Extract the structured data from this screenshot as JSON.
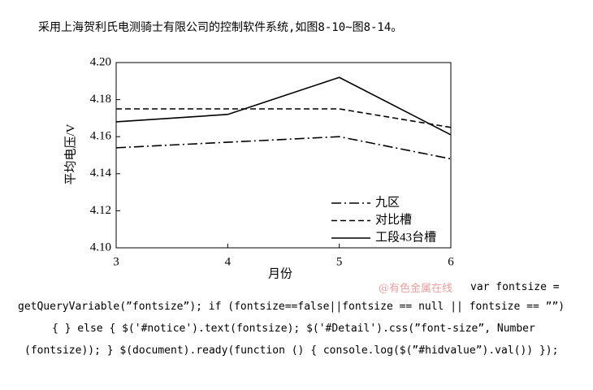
{
  "caption": "采用上海贺利氏电测骑士有限公司的控制软件系统,如图8-10~图8-14。",
  "chart_data": {
    "type": "line",
    "xlabel": "月份",
    "ylabel": "平均电压/V",
    "x": [
      3,
      4,
      5,
      6
    ],
    "xlim": [
      3,
      6
    ],
    "xticks": [
      3,
      4,
      5,
      6
    ],
    "ylim": [
      4.1,
      4.2
    ],
    "yticks": [
      {
        "value": 4.1,
        "label": "4.10"
      },
      4.12,
      4.14,
      4.16,
      4.18,
      {
        "value": 4.2,
        "label": "4.20"
      }
    ],
    "grid": false,
    "legend": "lower right",
    "series": [
      {
        "name": "九区",
        "color": "#000000",
        "dash": "dashdot",
        "values": [
          4.154,
          4.157,
          4.16,
          4.148
        ]
      },
      {
        "name": "对比槽",
        "color": "#000000",
        "dash": "dashed",
        "values": [
          4.175,
          4.175,
          4.175,
          4.165
        ]
      },
      {
        "name": "工段43台槽",
        "color": "#000000",
        "dash": "solid",
        "values": [
          4.168,
          4.172,
          4.192,
          4.161
        ]
      }
    ]
  },
  "watermark": "@有色金属在线",
  "code_lines": [
    "var fontsize =",
    "getQueryVariable(”fontsize”); if (fontsize==false||fontsize == null || fontsize == ””)",
    "{ } else { $('#notice').text(fontsize); $('#Detail').css(”font-size”, Number",
    "(fontsize)); } $(document).ready(function () { console.log($(”#hidvalue”).val()) });"
  ]
}
